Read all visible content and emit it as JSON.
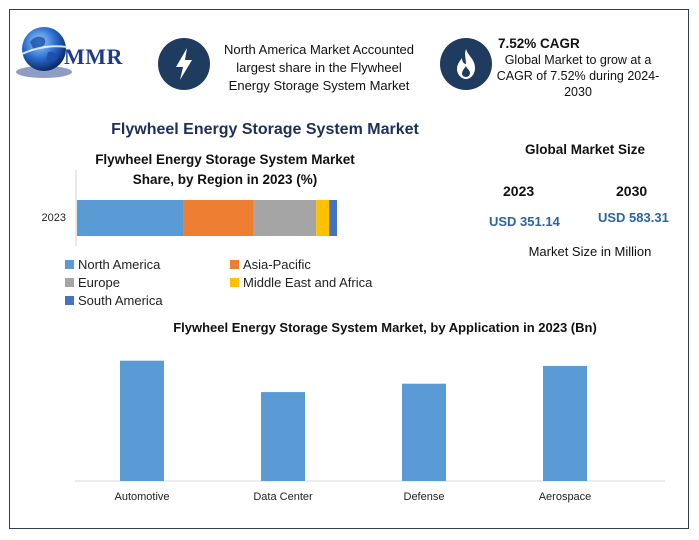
{
  "logo": {
    "text": "MMR"
  },
  "info_left": {
    "text": "North America Market Accounted largest share in the Flywheel Energy Storage System Market",
    "icon": "lightning-icon"
  },
  "info_right": {
    "title": "7.52% CAGR",
    "text": "Global Market to grow at a CAGR of 7.52% during 2024-2030",
    "icon": "flame-icon"
  },
  "main_title": "Flywheel Energy Storage System Market",
  "market_size": {
    "title": "Global Market Size",
    "year_a": "2023",
    "year_b": "2030",
    "value_a": "USD 351.14",
    "value_b": "USD 583.31",
    "unit": "Market Size in Million"
  },
  "colors": {
    "accent": "#1e2f5a",
    "icon_bg": "#1f3b5f",
    "usd": "#2a63a8"
  },
  "chart_data": [
    {
      "type": "bar",
      "orientation": "horizontal-stacked",
      "title": "Flywheel Energy Storage System Market Share, by Region in 2023 (%)",
      "categories": [
        "2023"
      ],
      "series": [
        {
          "name": "North America",
          "values": [
            41
          ],
          "color": "#5b9bd5"
        },
        {
          "name": "Asia-Pacific",
          "values": [
            27
          ],
          "color": "#ed7d31"
        },
        {
          "name": "Europe",
          "values": [
            24
          ],
          "color": "#a5a5a5"
        },
        {
          "name": "Middle East and Africa",
          "values": [
            5
          ],
          "color": "#ffc000"
        },
        {
          "name": "South America",
          "values": [
            3
          ],
          "color": "#4472c4"
        }
      ],
      "xlim": [
        0,
        100
      ],
      "legend": "bottom"
    },
    {
      "type": "bar",
      "title": "Flywheel Energy Storage System Market, by Application in 2023 (Bn)",
      "categories": [
        "Automotive",
        "Data Center",
        "Defense",
        "Aerospace"
      ],
      "values": [
        115,
        85,
        93,
        110
      ],
      "ylim": [
        0,
        130
      ],
      "color": "#5b9bd5",
      "grid": false
    }
  ]
}
